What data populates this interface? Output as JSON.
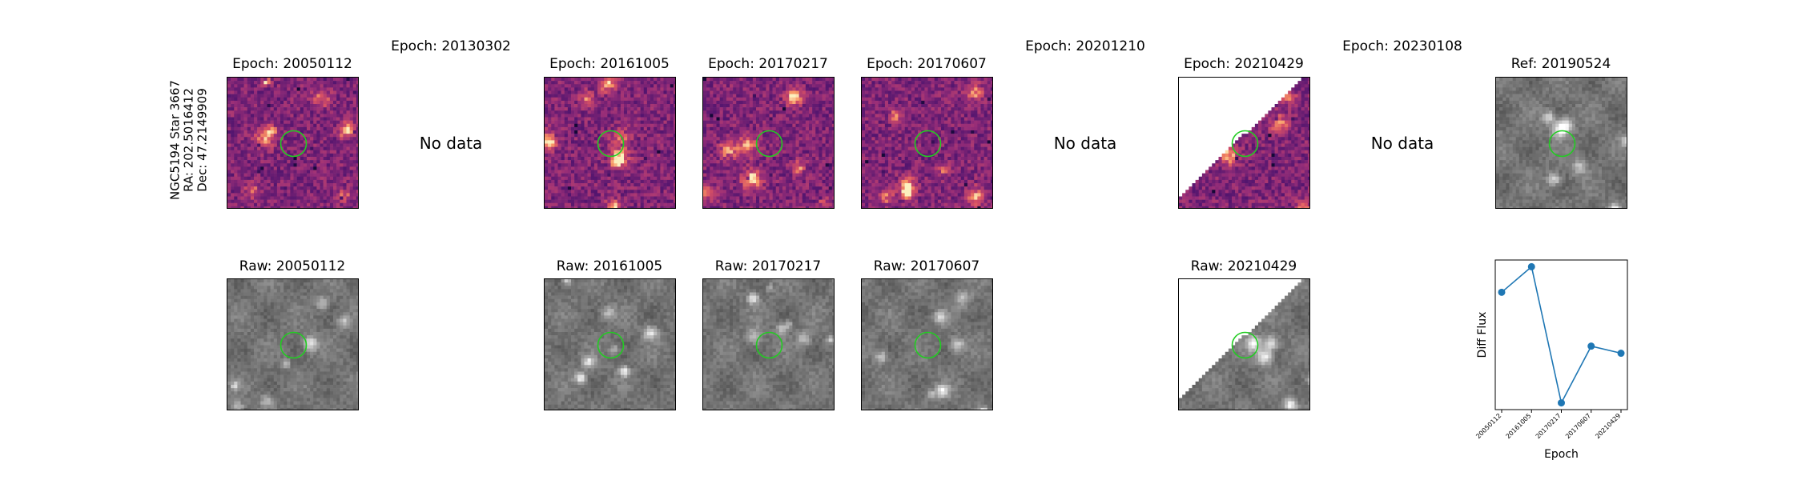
{
  "source_label": {
    "line1": "NGC5194 Star 3667",
    "line2": "RA: 202.5016412",
    "line3": "Dec: 47.2149909"
  },
  "no_data_label": "No data",
  "top_row": [
    {
      "title": "Epoch: 20050112",
      "has_data": true,
      "kind": "diff"
    },
    {
      "title": "Epoch: 20130302",
      "has_data": false
    },
    {
      "title": "Epoch: 20161005",
      "has_data": true,
      "kind": "diff"
    },
    {
      "title": "Epoch: 20170217",
      "has_data": true,
      "kind": "diff"
    },
    {
      "title": "Epoch: 20170607",
      "has_data": true,
      "kind": "diff"
    },
    {
      "title": "Epoch: 20201210",
      "has_data": false
    },
    {
      "title": "Epoch: 20210429",
      "has_data": true,
      "kind": "diff"
    },
    {
      "title": "Epoch: 20230108",
      "has_data": false
    },
    {
      "title": "Ref: 20190524",
      "has_data": true,
      "kind": "ref"
    }
  ],
  "bottom_row": [
    {
      "title": "Raw: 20050112"
    },
    {
      "title": "Raw: 20161005"
    },
    {
      "title": "Raw: 20170217"
    },
    {
      "title": "Raw: 20170607"
    },
    {
      "title": "Raw: 20210429"
    }
  ],
  "colors": {
    "circle": "#22cc22",
    "line": "#1f77b4"
  },
  "chart_data": {
    "type": "line",
    "title": "",
    "xlabel": "Epoch",
    "ylabel": "Diff Flux",
    "categories": [
      "20050112",
      "20161005",
      "20170217",
      "20170607",
      "20210429"
    ],
    "series": [
      {
        "values": [
          0.78,
          0.96,
          0.0,
          0.4,
          0.35
        ]
      }
    ],
    "y_tick_labels_shown": false,
    "grid": false,
    "legend": "none"
  }
}
